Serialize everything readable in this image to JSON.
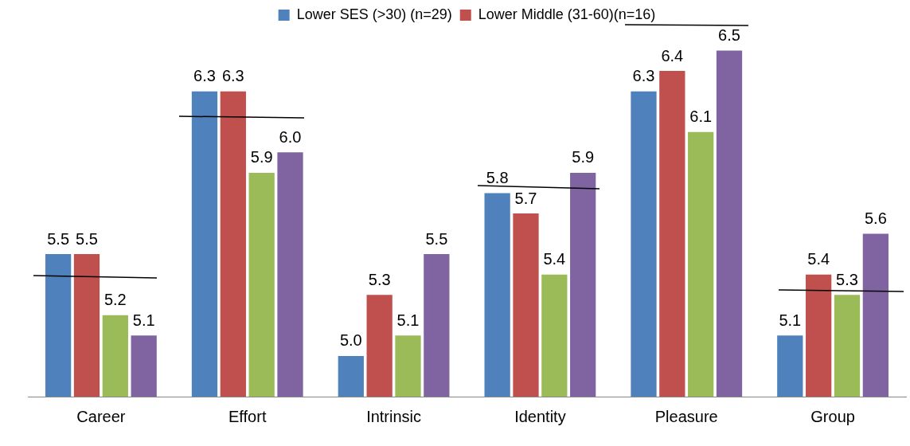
{
  "chart_data": {
    "type": "bar",
    "categories": [
      "Career",
      "Effort",
      "Intrinsic",
      "Identity",
      "Pleasure",
      "Group"
    ],
    "series": [
      {
        "name": "Lower SES (>30) (n=29)",
        "color": "#4f81bd",
        "values": [
          5.5,
          6.3,
          5.0,
          5.8,
          6.3,
          5.1
        ],
        "value_labels": [
          "5.5",
          "6.3",
          "5.0",
          "5.8",
          "6.3",
          "5.1"
        ]
      },
      {
        "name": "Lower Middle (31-60)(n=16)",
        "color": "#c0504d",
        "values": [
          5.5,
          6.3,
          5.3,
          5.7,
          6.4,
          5.4
        ],
        "value_labels": [
          "5.5",
          "6.3",
          "5.3",
          "5.7",
          "6.4",
          "5.4"
        ]
      },
      {
        "color": "#9bbb59",
        "values": [
          5.2,
          5.9,
          5.1,
          5.4,
          6.1,
          5.3
        ],
        "value_labels": [
          "5.2",
          "5.9",
          "5.1",
          "5.4",
          "6.1",
          "5.3"
        ]
      },
      {
        "color": "#8064a2",
        "values": [
          5.1,
          6.0,
          5.5,
          5.9,
          6.5,
          5.6
        ],
        "value_labels": [
          "5.1",
          "6.0",
          "5.5",
          "5.9",
          "6.5",
          "5.6"
        ]
      }
    ],
    "grid": false,
    "legend": "top",
    "tick_labels": "x"
  }
}
